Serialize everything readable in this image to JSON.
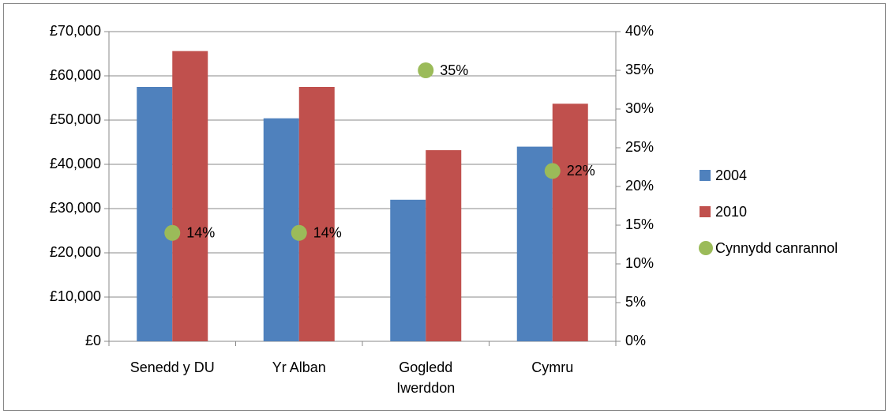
{
  "chart_data": {
    "type": "bar",
    "categories": [
      "Senedd y DU",
      "Yr Alban",
      "Gogledd Iwerddon",
      "Cymru"
    ],
    "series": [
      {
        "name": "2004",
        "color": "#4f81bd",
        "values": [
          57500,
          50400,
          32000,
          44000
        ]
      },
      {
        "name": "2010",
        "color": "#c0504d",
        "values": [
          65600,
          57500,
          43200,
          53700
        ]
      },
      {
        "name": "Cynnydd canrannol",
        "type": "scatter",
        "axis": "y2",
        "color": "#9bbb59",
        "values": [
          14,
          14,
          35,
          22
        ],
        "value_labels": [
          "14%",
          "14%",
          "35%",
          "22%"
        ]
      }
    ],
    "ylim": [
      0,
      70000
    ],
    "yticks": [
      {
        "value": 0,
        "label": "£0"
      },
      {
        "value": 10000,
        "label": "£10,000"
      },
      {
        "value": 20000,
        "label": "£20,000"
      },
      {
        "value": 30000,
        "label": "£30,000"
      },
      {
        "value": 40000,
        "label": "£40,000"
      },
      {
        "value": 50000,
        "label": "£50,000"
      },
      {
        "value": 60000,
        "label": "£60,000"
      },
      {
        "value": 70000,
        "label": "£70,000"
      }
    ],
    "y2lim": [
      0,
      40
    ],
    "y2ticks": [
      {
        "value": 0,
        "label": "0%"
      },
      {
        "value": 5,
        "label": "5%"
      },
      {
        "value": 10,
        "label": "10%"
      },
      {
        "value": 15,
        "label": "15%"
      },
      {
        "value": 20,
        "label": "20%"
      },
      {
        "value": 25,
        "label": "25%"
      },
      {
        "value": 30,
        "label": "30%"
      },
      {
        "value": 35,
        "label": "35%"
      },
      {
        "value": 40,
        "label": "40%"
      }
    ],
    "grid": true,
    "legend": "right"
  }
}
